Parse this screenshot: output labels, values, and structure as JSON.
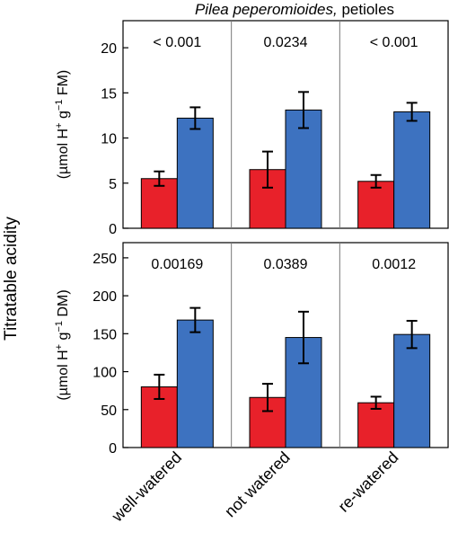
{
  "figure": {
    "title_species": "Pilea peperomioides,",
    "title_tissue": " petioles",
    "shared_ylabel": "Titratable acidity",
    "series_colors": [
      "#e8212a",
      "#3d72c0"
    ]
  },
  "chart_data": [
    {
      "type": "bar",
      "panel": "top",
      "categories": [
        "well-watered",
        "not watered",
        "re-watered"
      ],
      "ylabel": {
        "pre": "(µmol H",
        "sup1": "+",
        "mid": " g",
        "sup2": "−1",
        "post": " FM)"
      },
      "ylim": [
        0,
        23
      ],
      "yticks": [
        0,
        5,
        10,
        15,
        20
      ],
      "p_values": [
        "< 0.001",
        "0.0234",
        "< 0.001"
      ],
      "series": [
        {
          "color": "#e8212a",
          "values": [
            5.5,
            6.5,
            5.2
          ],
          "errors": [
            0.8,
            2.0,
            0.7
          ]
        },
        {
          "color": "#3d72c0",
          "values": [
            12.2,
            13.1,
            12.9
          ],
          "errors": [
            1.2,
            2.0,
            1.0
          ]
        }
      ],
      "show_xlabels": false
    },
    {
      "type": "bar",
      "panel": "bottom",
      "categories": [
        "well-watered",
        "not watered",
        "re-watered"
      ],
      "ylabel": {
        "pre": "(µmol H",
        "sup1": "+",
        "mid": " g",
        "sup2": "−1",
        "post": " DM)"
      },
      "ylim": [
        0,
        270
      ],
      "yticks": [
        0,
        50,
        100,
        150,
        200,
        250
      ],
      "p_values": [
        "0.00169",
        "0.0389",
        "0.0012"
      ],
      "series": [
        {
          "color": "#e8212a",
          "values": [
            80,
            66,
            59
          ],
          "errors": [
            16,
            18,
            8
          ]
        },
        {
          "color": "#3d72c0",
          "values": [
            168,
            145,
            149
          ],
          "errors": [
            16,
            34,
            18
          ]
        }
      ],
      "show_xlabels": true
    }
  ]
}
